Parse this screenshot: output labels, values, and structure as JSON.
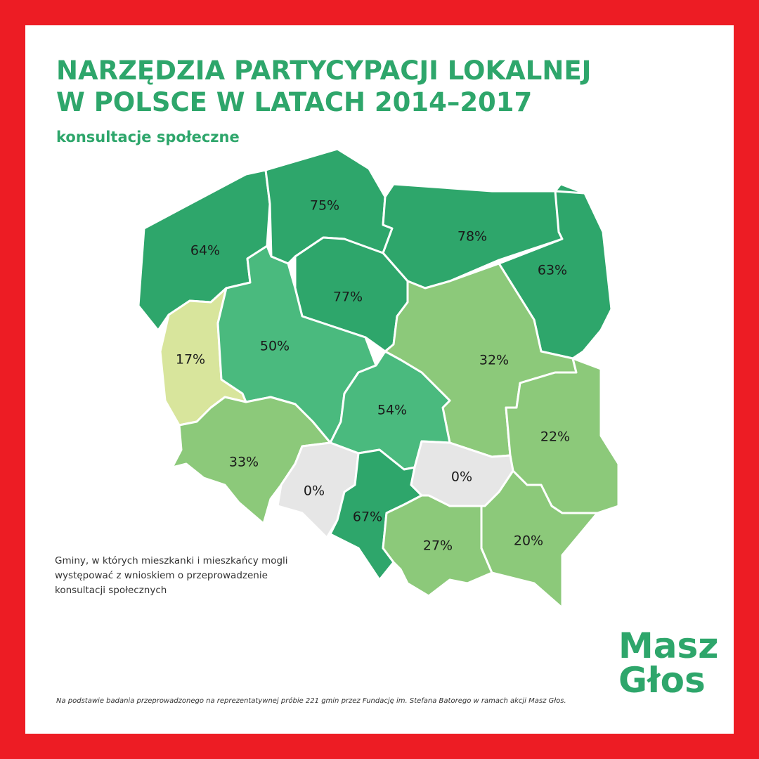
{
  "header": {
    "title_lines": [
      "NARZĘDZIA PARTYCYPACJI LOKALNEJ",
      "W POLSCE W LATACH 2014–2017"
    ],
    "subtitle": "konsultacje społeczne"
  },
  "regions": {
    "values": [
      64,
      75,
      78,
      63,
      77,
      17,
      50,
      32,
      54,
      22,
      33,
      0,
      67,
      0,
      27,
      20
    ],
    "value_labels": [
      "64%",
      "75%",
      "78%",
      "63%",
      "77%",
      "17%",
      "50%",
      "32%",
      "54%",
      "22%",
      "33%",
      "0%",
      "67%",
      "0%",
      "27%",
      "20%"
    ],
    "colors": [
      "#2ea66b",
      "#2ea66b",
      "#2ea66b",
      "#2ea66b",
      "#2ea66b",
      "#d8e59c",
      "#4aba7e",
      "#8cc97a",
      "#4aba7e",
      "#8cc97a",
      "#8cc97a",
      "#e6e6e6",
      "#2ea66b",
      "#e6e6e6",
      "#8cc97a",
      "#8cc97a"
    ]
  },
  "note_lines": [
    "Gminy, w których mieszkanki i mieszkańcy mogli",
    "występować z wnioskiem o przeprowadzenie",
    "konsultacji społecznych"
  ],
  "footnote": "Na podstawie badania przeprowadzonego na reprezentatywnej próbie 221 gmin przez Fundację im. Stefana Batorego w ramach akcji Masz Głos.",
  "logo_lines": [
    "Masz",
    "Głos"
  ]
}
